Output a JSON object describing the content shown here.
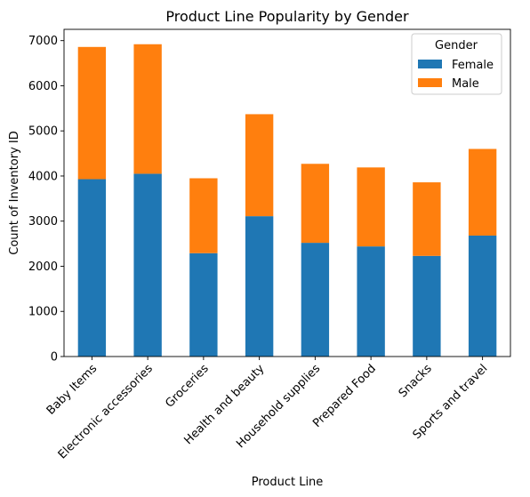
{
  "chart_data": {
    "type": "bar",
    "stacked": true,
    "title": "Product Line Popularity by Gender",
    "xlabel": "Product Line",
    "ylabel": "Count of Inventory ID",
    "ylim": [
      0,
      7250
    ],
    "yticks": [
      0,
      1000,
      2000,
      3000,
      4000,
      5000,
      6000,
      7000
    ],
    "categories": [
      "Baby Items",
      "Electronic accessories",
      "Groceries",
      "Health and beauty",
      "Household supplies",
      "Prepared Food",
      "Snacks",
      "Sports and travel"
    ],
    "series": [
      {
        "name": "Female",
        "color": "#1f77b4",
        "values": [
          3930,
          4050,
          2290,
          3110,
          2520,
          2440,
          2230,
          2680
        ]
      },
      {
        "name": "Male",
        "color": "#ff7f0e",
        "values": [
          2930,
          2870,
          1660,
          2260,
          1750,
          1750,
          1630,
          1920
        ]
      }
    ],
    "legend": {
      "title": "Gender",
      "position": "top-right"
    }
  }
}
